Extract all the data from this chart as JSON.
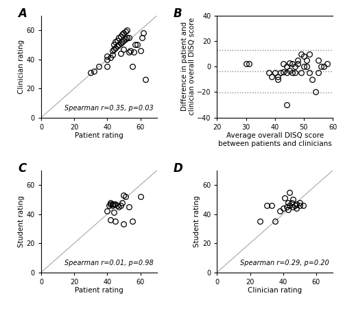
{
  "panel_A": {
    "patient_x": [
      30,
      32,
      40,
      40,
      42,
      43,
      43,
      44,
      44,
      45,
      45,
      46,
      46,
      47,
      47,
      48,
      48,
      48,
      49,
      49,
      50,
      50,
      51,
      51,
      52,
      52,
      53,
      54,
      55,
      56,
      57,
      58,
      60,
      61,
      62,
      63,
      40,
      35,
      50,
      53
    ],
    "clinician_y": [
      31,
      32,
      40,
      35,
      41,
      46,
      43,
      47,
      50,
      48,
      52,
      49,
      53,
      50,
      55,
      51,
      56,
      44,
      52,
      57,
      53,
      58,
      54,
      59,
      55,
      60,
      45,
      46,
      35,
      45,
      50,
      50,
      46,
      55,
      58,
      26,
      42,
      35,
      47,
      55
    ],
    "xlabel": "Patient rating",
    "ylabel": "Clinician rating",
    "label": "A",
    "spearman_text": "Spearman r=0.35, p=0.03",
    "xlim": [
      0,
      70
    ],
    "ylim": [
      0,
      70
    ],
    "xticks": [
      0,
      20,
      40,
      60
    ],
    "yticks": [
      0,
      20,
      40,
      60
    ]
  },
  "panel_B": {
    "avg_x": [
      30,
      31,
      38,
      39,
      40,
      41,
      41,
      42,
      43,
      43,
      44,
      45,
      45,
      46,
      46,
      47,
      47,
      48,
      48,
      49,
      49,
      50,
      50,
      51,
      51,
      52,
      52,
      53,
      54,
      44,
      55,
      55,
      56,
      57,
      58,
      44
    ],
    "diff_y": [
      2,
      2,
      -5,
      -8,
      -5,
      -8,
      -10,
      -5,
      2,
      -4,
      0,
      3,
      -3,
      2,
      -5,
      0,
      -5,
      2,
      5,
      10,
      -5,
      8,
      0,
      5,
      0,
      10,
      -5,
      -10,
      -20,
      -30,
      -5,
      5,
      0,
      0,
      2,
      -5
    ],
    "bias": -3.75,
    "upper_loa": 13.0,
    "lower_loa": -20.5,
    "xlabel": "Average overall DISQ score\nbetween patients and clinicians",
    "ylabel": "Difference in patient and\nclinician overall DISQ score",
    "label": "B",
    "xlim": [
      20,
      60
    ],
    "ylim": [
      -40,
      40
    ],
    "xticks": [
      20,
      30,
      40,
      50,
      60
    ],
    "yticks": [
      -40,
      -20,
      0,
      20,
      40
    ]
  },
  "panel_C": {
    "patient_x": [
      40,
      41,
      42,
      42,
      43,
      43,
      44,
      44,
      45,
      45,
      46,
      47,
      48,
      49,
      50,
      50,
      51,
      53,
      55,
      60,
      42
    ],
    "student_y": [
      42,
      46,
      47,
      48,
      47,
      46,
      41,
      47,
      35,
      47,
      46,
      45,
      46,
      48,
      53,
      33,
      52,
      45,
      35,
      52,
      36
    ],
    "xlabel": "Patient rating",
    "ylabel": "Student rating",
    "label": "C",
    "spearman_text": "Spearman r=0.01, p=0.98",
    "xlim": [
      0,
      70
    ],
    "ylim": [
      0,
      70
    ],
    "xticks": [
      0,
      20,
      40,
      60
    ],
    "yticks": [
      0,
      20,
      40,
      60
    ]
  },
  "panel_D": {
    "clinician_x": [
      26,
      30,
      33,
      35,
      38,
      40,
      41,
      42,
      43,
      43,
      44,
      44,
      45,
      46,
      46,
      47,
      48,
      48,
      50,
      50,
      52
    ],
    "student_y": [
      35,
      46,
      46,
      35,
      42,
      44,
      51,
      45,
      48,
      43,
      46,
      55,
      48,
      50,
      45,
      46,
      44,
      47,
      48,
      46,
      46
    ],
    "xlabel": "Clinician rating",
    "ylabel": "Student rating",
    "label": "D",
    "spearman_text": "Spearman r=0.29, p=0.20",
    "xlim": [
      0,
      70
    ],
    "ylim": [
      0,
      70
    ],
    "xticks": [
      0,
      20,
      40,
      60
    ],
    "yticks": [
      0,
      20,
      40,
      60
    ]
  },
  "marker_color": "#000000",
  "marker_facecolor": "none",
  "marker_size": 5.5,
  "marker_linewidth": 0.9,
  "background_color": "#ffffff",
  "text_color": "#000000",
  "font_size": 7.5,
  "label_fontsize": 12,
  "annotation_fontsize": 7,
  "diag_line_color": "#b0b0b0",
  "hline_color": "#888888"
}
